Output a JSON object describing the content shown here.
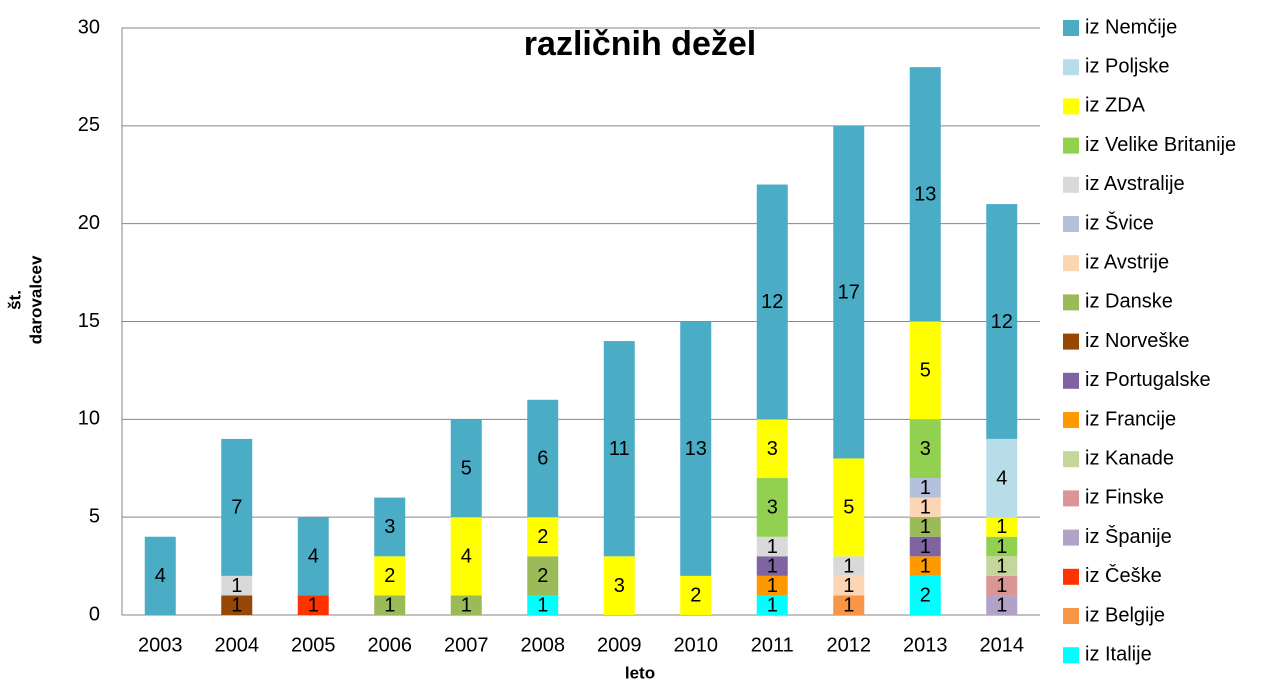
{
  "chart_data": {
    "type": "bar",
    "stacked": true,
    "title": "različnih dežel",
    "x_label": "leto",
    "y_label": [
      "št.",
      "darovalcev"
    ],
    "categories": [
      "2003",
      "2004",
      "2005",
      "2006",
      "2007",
      "2008",
      "2009",
      "2010",
      "2011",
      "2012",
      "2013",
      "2014"
    ],
    "ylim": [
      0,
      30
    ],
    "yticks": [
      0,
      5,
      10,
      15,
      20,
      25,
      30
    ],
    "grid": true,
    "series": [
      {
        "name": "iz Italije",
        "color": "#00ffff",
        "values": [
          null,
          null,
          null,
          null,
          null,
          1,
          null,
          null,
          1,
          null,
          2,
          null
        ]
      },
      {
        "name": "iz Belgije",
        "color": "#f79646",
        "values": [
          null,
          null,
          null,
          null,
          null,
          null,
          null,
          null,
          null,
          1,
          null,
          null
        ]
      },
      {
        "name": "iz Češke",
        "color": "#ff3300",
        "values": [
          null,
          null,
          1,
          null,
          null,
          null,
          null,
          null,
          null,
          null,
          null,
          null
        ]
      },
      {
        "name": "iz Španije",
        "color": "#b3a2c7",
        "values": [
          null,
          null,
          null,
          null,
          null,
          null,
          null,
          null,
          null,
          null,
          null,
          1
        ]
      },
      {
        "name": "iz Finske",
        "color": "#d99694",
        "values": [
          null,
          null,
          null,
          null,
          null,
          null,
          null,
          null,
          null,
          null,
          null,
          1
        ]
      },
      {
        "name": "iz Kanade",
        "color": "#c3d69b",
        "values": [
          null,
          null,
          null,
          null,
          null,
          null,
          null,
          null,
          null,
          null,
          null,
          1
        ]
      },
      {
        "name": "iz Francije",
        "color": "#ff9900",
        "values": [
          null,
          null,
          null,
          null,
          null,
          null,
          null,
          null,
          1,
          null,
          1,
          null
        ]
      },
      {
        "name": "iz Portugalske",
        "color": "#8064a2",
        "values": [
          null,
          null,
          null,
          null,
          null,
          null,
          null,
          null,
          1,
          null,
          1,
          null
        ]
      },
      {
        "name": "iz Norveške",
        "color": "#974706",
        "values": [
          null,
          1,
          null,
          null,
          null,
          null,
          null,
          null,
          null,
          null,
          null,
          null
        ]
      },
      {
        "name": "iz Danske",
        "color": "#9bbb59",
        "values": [
          null,
          null,
          null,
          1,
          1,
          2,
          null,
          null,
          null,
          null,
          1,
          null
        ]
      },
      {
        "name": "iz Avstrije",
        "color": "#fcd5b5",
        "values": [
          null,
          null,
          null,
          null,
          null,
          null,
          null,
          null,
          null,
          1,
          1,
          null
        ]
      },
      {
        "name": "iz Švice",
        "color": "#b4c0dc",
        "values": [
          null,
          null,
          null,
          null,
          null,
          null,
          null,
          null,
          null,
          null,
          1,
          null
        ]
      },
      {
        "name": "iz Avstralije",
        "color": "#d9d9d9",
        "values": [
          null,
          1,
          null,
          null,
          null,
          null,
          null,
          null,
          1,
          1,
          null,
          null
        ]
      },
      {
        "name": "iz Velike Britanije",
        "color": "#92d050",
        "values": [
          null,
          null,
          null,
          null,
          null,
          null,
          null,
          null,
          3,
          null,
          3,
          1
        ]
      },
      {
        "name": "iz ZDA",
        "color": "#ffff00",
        "values": [
          null,
          null,
          null,
          2,
          4,
          2,
          3,
          2,
          3,
          5,
          5,
          1
        ]
      },
      {
        "name": "iz Poljske",
        "color": "#b7dde8",
        "values": [
          null,
          null,
          null,
          null,
          null,
          null,
          null,
          null,
          null,
          null,
          null,
          4
        ]
      },
      {
        "name": "iz Nemčije",
        "color": "#4bacc6",
        "values": [
          4,
          7,
          4,
          3,
          5,
          6,
          11,
          13,
          12,
          17,
          13,
          12
        ]
      }
    ]
  }
}
